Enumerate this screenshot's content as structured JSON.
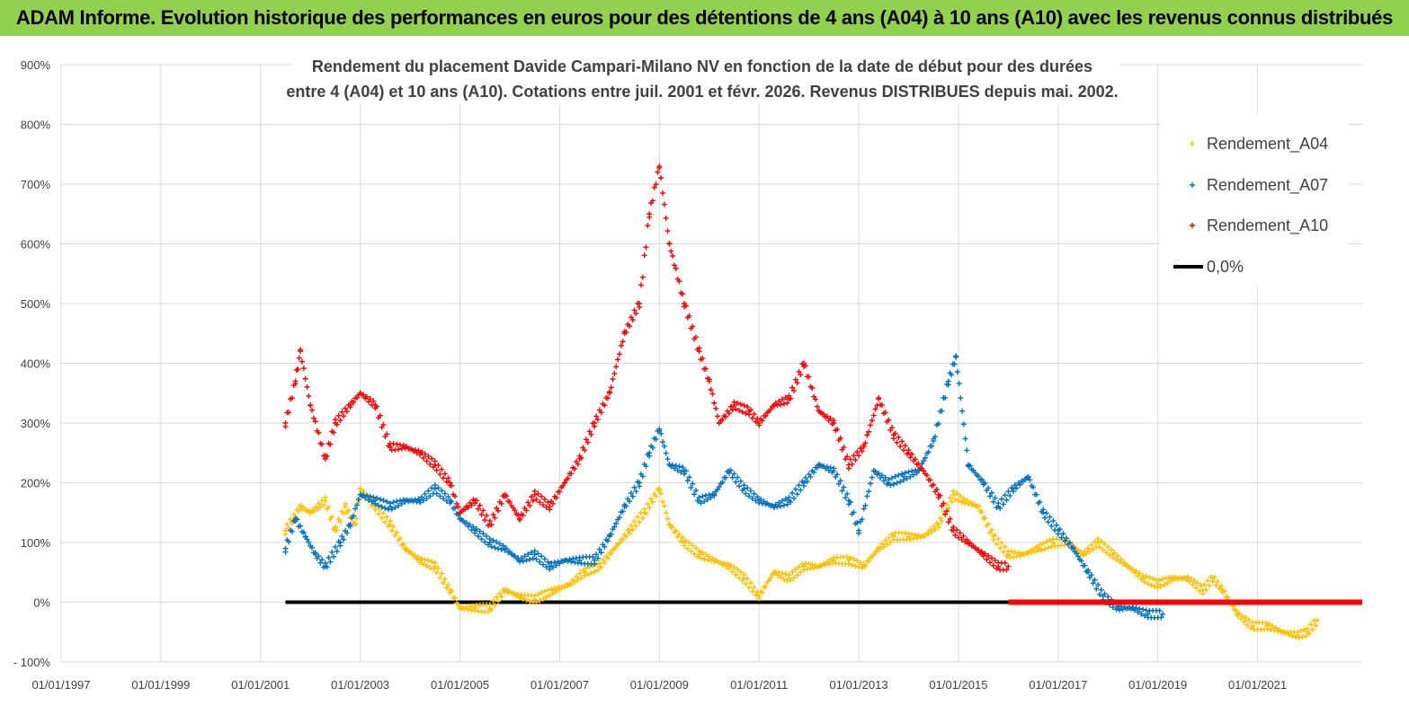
{
  "banner": {
    "title": "ADAM Informe. Evolution historique des performances en euros pour des détentions de 4 ans (A04) à 10 ans (A10) avec les revenus connus distribués"
  },
  "colors": {
    "banner_bg": "#92d050",
    "A04": "#ffc000",
    "A07": "#0070c0",
    "A10": "#ff0000",
    "zero": "#000000",
    "grid": "#d9d9d9"
  },
  "chart_data": {
    "type": "scatter",
    "title_lines": [
      "Rendement du placement Davide Campari-Milano NV en fonction de la date de début pour des durées",
      "entre 4 (A04) et 10 ans (A10).  Cotations entre juil. 2001 et févr. 2026.  Revenus DISTRIBUES depuis mai. 2002."
    ],
    "ylim": [
      -100,
      900
    ],
    "yticks": [
      -100,
      0,
      100,
      200,
      300,
      400,
      500,
      600,
      700,
      800,
      900
    ],
    "ytick_labels": [
      "- 100%",
      "0%",
      "100%",
      "200%",
      "300%",
      "400%",
      "500%",
      "600%",
      "700%",
      "800%",
      "900%"
    ],
    "xlim": [
      1997.0,
      2023.1
    ],
    "xticks": [
      1997,
      1999,
      2001,
      2003,
      2005,
      2007,
      2009,
      2011,
      2013,
      2015,
      2017,
      2019,
      2021
    ],
    "xtick_labels": [
      "01/01/1997",
      "01/01/1999",
      "01/01/2001",
      "01/01/2003",
      "01/01/2005",
      "01/01/2007",
      "01/01/2009",
      "01/01/2011",
      "01/01/2013",
      "01/01/2015",
      "01/01/2017",
      "01/01/2019",
      "01/01/2021"
    ],
    "legend_position": "top-right",
    "series": [
      {
        "name": "Rendement_A04",
        "points": [
          [
            2001.5,
            120
          ],
          [
            2001.8,
            160
          ],
          [
            2002.0,
            150
          ],
          [
            2002.3,
            170
          ],
          [
            2002.5,
            120
          ],
          [
            2002.7,
            160
          ],
          [
            2002.9,
            130
          ],
          [
            2003.0,
            190
          ],
          [
            2003.3,
            160
          ],
          [
            2003.6,
            130
          ],
          [
            2003.9,
            90
          ],
          [
            2004.2,
            70
          ],
          [
            2004.5,
            60
          ],
          [
            2004.8,
            20
          ],
          [
            2005.0,
            -10
          ],
          [
            2005.3,
            -10
          ],
          [
            2005.6,
            -10
          ],
          [
            2005.9,
            20
          ],
          [
            2006.2,
            10
          ],
          [
            2006.5,
            5
          ],
          [
            2006.9,
            20
          ],
          [
            2007.2,
            30
          ],
          [
            2007.5,
            50
          ],
          [
            2007.8,
            60
          ],
          [
            2008.1,
            90
          ],
          [
            2008.4,
            120
          ],
          [
            2008.7,
            150
          ],
          [
            2009.0,
            190
          ],
          [
            2009.2,
            130
          ],
          [
            2009.5,
            100
          ],
          [
            2009.8,
            80
          ],
          [
            2010.1,
            70
          ],
          [
            2010.4,
            60
          ],
          [
            2010.7,
            40
          ],
          [
            2011.0,
            10
          ],
          [
            2011.3,
            50
          ],
          [
            2011.6,
            40
          ],
          [
            2011.9,
            60
          ],
          [
            2012.2,
            60
          ],
          [
            2012.5,
            70
          ],
          [
            2012.8,
            70
          ],
          [
            2013.1,
            60
          ],
          [
            2013.4,
            90
          ],
          [
            2013.7,
            110
          ],
          [
            2014.0,
            110
          ],
          [
            2014.3,
            110
          ],
          [
            2014.6,
            130
          ],
          [
            2014.9,
            180
          ],
          [
            2015.1,
            170
          ],
          [
            2015.4,
            160
          ],
          [
            2015.7,
            110
          ],
          [
            2016.0,
            80
          ],
          [
            2016.3,
            80
          ],
          [
            2016.6,
            90
          ],
          [
            2016.9,
            100
          ],
          [
            2017.2,
            100
          ],
          [
            2017.5,
            80
          ],
          [
            2017.8,
            100
          ],
          [
            2018.1,
            80
          ],
          [
            2018.4,
            60
          ],
          [
            2018.7,
            40
          ],
          [
            2019.0,
            30
          ],
          [
            2019.3,
            40
          ],
          [
            2019.6,
            40
          ],
          [
            2019.9,
            20
          ],
          [
            2020.1,
            40
          ],
          [
            2020.3,
            20
          ],
          [
            2020.6,
            -20
          ],
          [
            2020.9,
            -40
          ],
          [
            2021.2,
            -40
          ],
          [
            2021.5,
            -50
          ],
          [
            2021.8,
            -55
          ],
          [
            2022.0,
            -50
          ],
          [
            2022.2,
            -30
          ]
        ]
      },
      {
        "name": "Rendement_A07",
        "points": [
          [
            2001.5,
            90
          ],
          [
            2001.7,
            140
          ],
          [
            2001.9,
            110
          ],
          [
            2002.1,
            80
          ],
          [
            2002.3,
            60
          ],
          [
            2002.6,
            100
          ],
          [
            2002.8,
            130
          ],
          [
            2003.0,
            180
          ],
          [
            2003.3,
            170
          ],
          [
            2003.6,
            160
          ],
          [
            2003.9,
            170
          ],
          [
            2004.2,
            170
          ],
          [
            2004.5,
            190
          ],
          [
            2004.8,
            170
          ],
          [
            2005.0,
            140
          ],
          [
            2005.3,
            120
          ],
          [
            2005.6,
            100
          ],
          [
            2005.9,
            90
          ],
          [
            2006.2,
            70
          ],
          [
            2006.5,
            80
          ],
          [
            2006.8,
            60
          ],
          [
            2007.1,
            70
          ],
          [
            2007.4,
            70
          ],
          [
            2007.7,
            70
          ],
          [
            2008.0,
            110
          ],
          [
            2008.3,
            160
          ],
          [
            2008.6,
            200
          ],
          [
            2008.8,
            250
          ],
          [
            2009.0,
            290
          ],
          [
            2009.2,
            230
          ],
          [
            2009.5,
            220
          ],
          [
            2009.8,
            170
          ],
          [
            2010.1,
            180
          ],
          [
            2010.4,
            220
          ],
          [
            2010.7,
            190
          ],
          [
            2011.0,
            170
          ],
          [
            2011.3,
            160
          ],
          [
            2011.6,
            170
          ],
          [
            2011.9,
            200
          ],
          [
            2012.2,
            230
          ],
          [
            2012.5,
            220
          ],
          [
            2012.8,
            170
          ],
          [
            2013.0,
            120
          ],
          [
            2013.3,
            220
          ],
          [
            2013.6,
            200
          ],
          [
            2013.9,
            210
          ],
          [
            2014.2,
            220
          ],
          [
            2014.5,
            270
          ],
          [
            2014.8,
            370
          ],
          [
            2014.95,
            410
          ],
          [
            2015.2,
            230
          ],
          [
            2015.5,
            200
          ],
          [
            2015.8,
            160
          ],
          [
            2016.1,
            190
          ],
          [
            2016.4,
            210
          ],
          [
            2016.7,
            150
          ],
          [
            2017.0,
            120
          ],
          [
            2017.3,
            90
          ],
          [
            2017.6,
            50
          ],
          [
            2017.9,
            10
          ],
          [
            2018.2,
            -10
          ],
          [
            2018.5,
            -10
          ],
          [
            2018.8,
            -20
          ],
          [
            2019.1,
            -20
          ]
        ]
      },
      {
        "name": "Rendement_A10",
        "points": [
          [
            2001.5,
            300
          ],
          [
            2001.7,
            370
          ],
          [
            2001.8,
            420
          ],
          [
            2002.0,
            330
          ],
          [
            2002.3,
            240
          ],
          [
            2002.5,
            300
          ],
          [
            2002.8,
            330
          ],
          [
            2003.0,
            350
          ],
          [
            2003.3,
            330
          ],
          [
            2003.6,
            260
          ],
          [
            2003.9,
            260
          ],
          [
            2004.2,
            250
          ],
          [
            2004.5,
            230
          ],
          [
            2004.8,
            200
          ],
          [
            2005.0,
            150
          ],
          [
            2005.3,
            170
          ],
          [
            2005.6,
            130
          ],
          [
            2005.9,
            180
          ],
          [
            2006.2,
            140
          ],
          [
            2006.5,
            180
          ],
          [
            2006.8,
            160
          ],
          [
            2007.1,
            200
          ],
          [
            2007.4,
            240
          ],
          [
            2007.7,
            300
          ],
          [
            2008.0,
            350
          ],
          [
            2008.3,
            450
          ],
          [
            2008.6,
            500
          ],
          [
            2008.8,
            650
          ],
          [
            2009.0,
            730
          ],
          [
            2009.2,
            600
          ],
          [
            2009.5,
            500
          ],
          [
            2009.8,
            420
          ],
          [
            2010.0,
            370
          ],
          [
            2010.2,
            300
          ],
          [
            2010.5,
            330
          ],
          [
            2010.8,
            320
          ],
          [
            2011.0,
            300
          ],
          [
            2011.3,
            330
          ],
          [
            2011.6,
            340
          ],
          [
            2011.9,
            400
          ],
          [
            2012.2,
            320
          ],
          [
            2012.5,
            300
          ],
          [
            2012.8,
            230
          ],
          [
            2013.1,
            260
          ],
          [
            2013.4,
            340
          ],
          [
            2013.7,
            280
          ],
          [
            2014.0,
            250
          ],
          [
            2014.3,
            220
          ],
          [
            2014.6,
            180
          ],
          [
            2014.9,
            120
          ],
          [
            2015.2,
            100
          ],
          [
            2015.5,
            80
          ],
          [
            2015.8,
            60
          ],
          [
            2016.0,
            60
          ]
        ]
      },
      {
        "name": "0,0%",
        "points": [
          [
            2001.5,
            0
          ],
          [
            2023.1,
            0
          ]
        ]
      }
    ],
    "a10_flat_segment": [
      [
        2016.0,
        0
      ],
      [
        2023.1,
        0
      ]
    ]
  }
}
